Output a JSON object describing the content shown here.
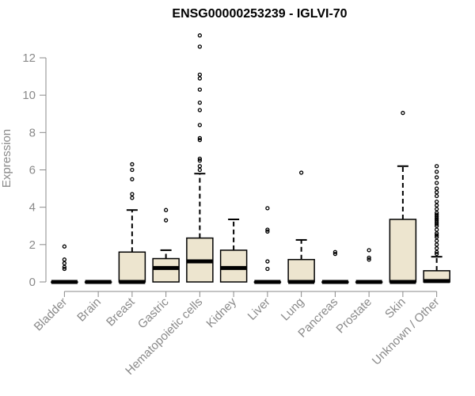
{
  "chart_data": {
    "type": "box",
    "title": "ENSG00000253239 - IGLVI-70",
    "xlabel": "",
    "ylabel": "Expression",
    "ylim": [
      0,
      13.3
    ],
    "yticks": [
      0,
      2,
      4,
      6,
      8,
      10,
      12
    ],
    "grid": false,
    "legend": "none",
    "colors": {
      "box_fill": "#ede5cf",
      "stroke": "#000000",
      "axis": "#8a8a8a"
    },
    "categories": [
      "Bladder",
      "Brain",
      "Breast",
      "Gastric",
      "Hematopoietic cells",
      "Kidney",
      "Liver",
      "Lung",
      "Pancreas",
      "Prostate",
      "Skin",
      "Unknown / Other"
    ],
    "boxes": [
      {
        "category": "Bladder",
        "q1": 0,
        "median": 0,
        "q3": 0,
        "whisker_low": 0,
        "whisker_high": 0,
        "outliers": [
          0.7,
          0.8,
          1.0,
          1.2,
          1.9
        ]
      },
      {
        "category": "Brain",
        "q1": 0,
        "median": 0,
        "q3": 0,
        "whisker_low": 0,
        "whisker_high": 0,
        "outliers": []
      },
      {
        "category": "Breast",
        "q1": 0,
        "median": 0,
        "q3": 1.6,
        "whisker_low": 0,
        "whisker_high": 3.85,
        "outliers": [
          4.5,
          4.7,
          5.5,
          6.0,
          6.3
        ]
      },
      {
        "category": "Gastric",
        "q1": 0,
        "median": 0.75,
        "q3": 1.25,
        "whisker_low": 0,
        "whisker_high": 1.7,
        "outliers": [
          3.3,
          3.85
        ]
      },
      {
        "category": "Hematopoietic cells",
        "q1": 0,
        "median": 1.1,
        "q3": 2.35,
        "whisker_low": 0,
        "whisker_high": 5.8,
        "outliers": [
          6.0,
          6.2,
          6.5,
          6.6,
          7.6,
          7.7,
          8.4,
          9.2,
          9.6,
          10.3,
          10.9,
          11.1,
          12.6,
          13.2
        ]
      },
      {
        "category": "Kidney",
        "q1": 0,
        "median": 0.75,
        "q3": 1.7,
        "whisker_low": 0,
        "whisker_high": 3.35,
        "outliers": []
      },
      {
        "category": "Liver",
        "q1": 0,
        "median": 0,
        "q3": 0,
        "whisker_low": 0,
        "whisker_high": 0,
        "outliers": [
          0.7,
          1.1,
          2.7,
          2.8,
          3.95
        ]
      },
      {
        "category": "Lung",
        "q1": 0,
        "median": 0,
        "q3": 1.2,
        "whisker_low": 0,
        "whisker_high": 2.25,
        "outliers": [
          5.85
        ]
      },
      {
        "category": "Pancreas",
        "q1": 0,
        "median": 0,
        "q3": 0,
        "whisker_low": 0,
        "whisker_high": 0,
        "outliers": [
          1.5,
          1.6
        ]
      },
      {
        "category": "Prostate",
        "q1": 0,
        "median": 0,
        "q3": 0,
        "whisker_low": 0,
        "whisker_high": 0,
        "outliers": [
          1.2,
          1.3,
          1.7
        ]
      },
      {
        "category": "Skin",
        "q1": 0,
        "median": 0,
        "q3": 3.35,
        "whisker_low": 0,
        "whisker_high": 6.2,
        "outliers": [
          9.05
        ]
      },
      {
        "category": "Unknown / Other",
        "q1": 0,
        "median": 0.05,
        "q3": 0.6,
        "whisker_low": 0,
        "whisker_high": 1.35,
        "outliers": [
          1.5,
          1.6,
          1.8,
          2.0,
          2.2,
          2.4,
          2.5,
          2.6,
          2.8,
          3.0,
          3.1,
          3.2,
          3.3,
          3.4,
          3.5,
          3.6,
          3.7,
          3.9,
          4.1,
          4.3,
          4.6,
          4.8,
          5.0,
          5.3,
          5.6,
          5.9,
          6.2
        ]
      }
    ]
  }
}
